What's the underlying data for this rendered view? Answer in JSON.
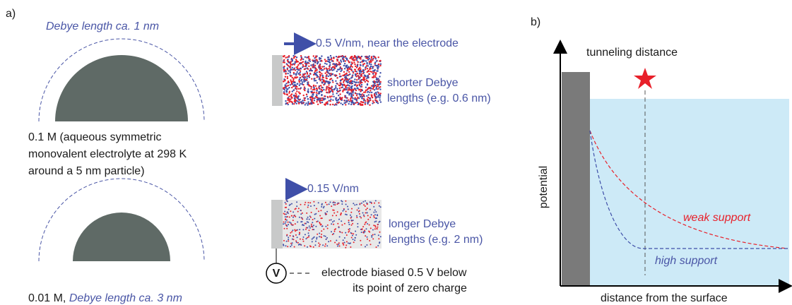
{
  "panel_a": {
    "label": "a)",
    "particle_high": {
      "debye": "Debye length ca. 1 nm",
      "caption": [
        "0.1 M (aqueous symmetric",
        "monovalent electrolyte at 298 K",
        "around a  5 nm particle)"
      ]
    },
    "particle_low": {
      "concentration": "0.01 M, ",
      "debye": "Debye length ca. 3 nm"
    },
    "electrode_high": {
      "field": "0.5 V/nm, near the electrode",
      "caption": [
        "shorter Debye",
        "lengths (e.g. 0.6 nm)"
      ]
    },
    "electrode_low": {
      "field": "0.15 V/nm",
      "caption": [
        "longer Debye",
        "lengths (e.g. 2 nm)"
      ],
      "meter": "V",
      "bias": [
        "electrode biased 0.5 V below",
        "its point of zero charge"
      ]
    }
  },
  "panel_b": {
    "label": "b)",
    "tunneling": "tunneling distance",
    "y_axis": "potential",
    "x_axis": "distance from the surface",
    "weak": "weak support",
    "high": "high support"
  }
}
